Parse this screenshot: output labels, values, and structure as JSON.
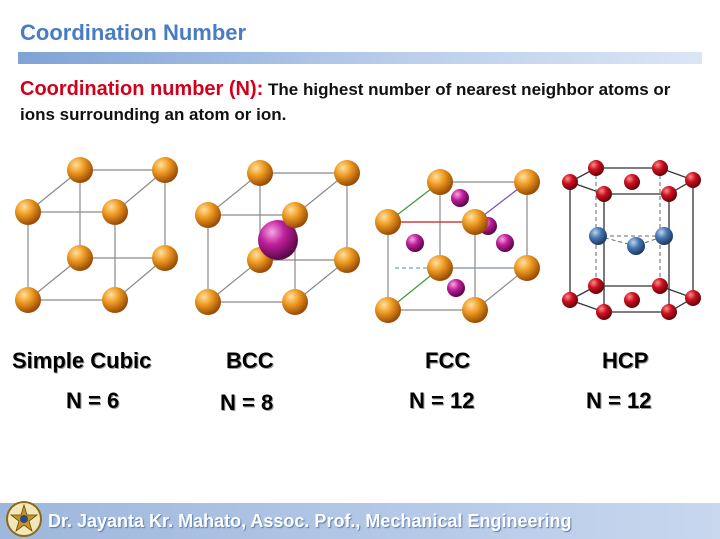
{
  "slide": {
    "title": "Coordination Number",
    "definition_term": "Coordination number (N):",
    "definition_text": " The highest number of nearest neighbor atoms or ions surrounding an atom or ion."
  },
  "structures": [
    {
      "name": "Simple Cubic",
      "n_label": "N = 6"
    },
    {
      "name": "BCC",
      "n_label": "N = 8"
    },
    {
      "name": "FCC",
      "n_label": "N = 12"
    },
    {
      "name": "HCP",
      "n_label": "N = 12"
    }
  ],
  "colors": {
    "title": "#4a7cc4",
    "term": "#d0021b",
    "atom_orange": "#e8901a",
    "atom_magenta": "#b0188e",
    "atom_red": "#c40e1a",
    "atom_blue": "#3f6fa8"
  },
  "footer": {
    "text": "Dr. Jayanta Kr. Mahato, Assoc. Prof., Mechanical Engineering",
    "logo_icon": "university-emblem-icon"
  }
}
